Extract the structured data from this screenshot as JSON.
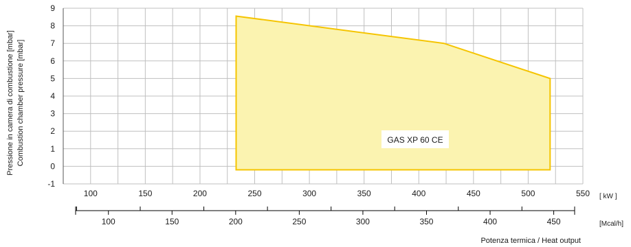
{
  "chart_data": {
    "type": "area",
    "ylabel_lines": [
      "Pressione in camera di combustione [mbar]",
      "Combustion chamber pressure [mbar]"
    ],
    "xlabel": "Potenza termica / Heat output",
    "x_unit_kw": "[ kW ]",
    "x_unit_mcal": "[Mcal/h]",
    "xlim_kw": [
      75,
      550
    ],
    "ylim": [
      -1,
      9
    ],
    "y_ticks": [
      -1,
      0,
      1,
      2,
      3,
      4,
      5,
      6,
      7,
      8,
      9
    ],
    "kw_ticks": [
      100,
      150,
      200,
      250,
      300,
      350,
      400,
      450,
      500,
      550
    ],
    "kw_tick_labels": [
      "100",
      "150",
      "200",
      "250",
      "300",
      "350",
      "400",
      "450",
      "500",
      "550"
    ],
    "mcal_ticks": [
      100,
      150,
      200,
      250,
      300,
      350,
      400,
      450
    ],
    "mcal_tick_labels": [
      "100",
      "150",
      "200",
      "250",
      "300",
      "350",
      "400",
      "450"
    ],
    "grid": true,
    "series": [
      {
        "name": "GAS XP 60 CE",
        "color": "#f5c400",
        "fill": "#fbf3b0",
        "polygon_kw_mbar": [
          [
            233,
            8.55
          ],
          [
            423,
            7.0
          ],
          [
            520,
            5.0
          ],
          [
            520,
            -0.2
          ],
          [
            233,
            -0.2
          ]
        ]
      }
    ],
    "annotation": "GAS XP 60 CE"
  }
}
